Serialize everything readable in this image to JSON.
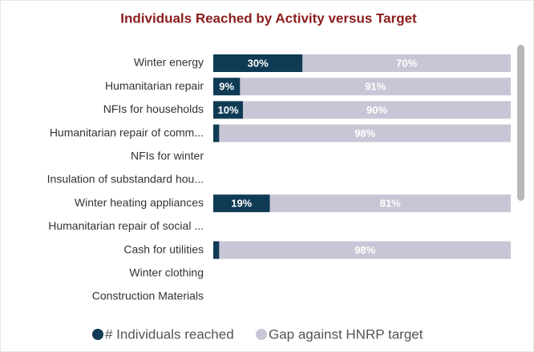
{
  "chart_data": {
    "type": "stacked-bar-horizontal",
    "title": "Individuals Reached by Activity versus Target",
    "categories": [
      "Winter energy",
      "Humanitarian repair",
      "NFIs for households",
      "Humanitarian repair of comm...",
      "NFIs for winter",
      "Insulation of substandard hou...",
      "Winter heating appliances",
      "Humanitarian repair of social ...",
      "Cash for utilities",
      "Winter clothing",
      "Construction Materials"
    ],
    "series": [
      {
        "name": "# Individuals reached",
        "color": "#0f3b55",
        "values": [
          30,
          9,
          10,
          2,
          null,
          null,
          19,
          null,
          2,
          null,
          null
        ],
        "value_labels": [
          "30%",
          "9%",
          "10%",
          null,
          null,
          null,
          "19%",
          null,
          null,
          null,
          null
        ]
      },
      {
        "name": "Gap against HNRP target",
        "color": "#c8c6d6",
        "values": [
          70,
          91,
          90,
          98,
          null,
          null,
          81,
          null,
          98,
          null,
          null
        ],
        "value_labels": [
          "70%",
          "91%",
          "90%",
          "98%",
          null,
          null,
          "81%",
          null,
          "98%",
          null,
          null
        ]
      }
    ],
    "xlim": [
      0,
      100
    ],
    "legend": "bottom"
  }
}
